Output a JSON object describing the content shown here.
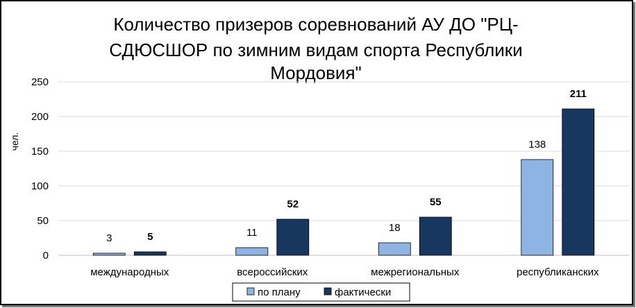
{
  "chart_data": {
    "type": "bar",
    "title_lines": [
      "Количество призеров соревнований АУ ДО \"РЦ-",
      "СДЮСШОР по зимним видам спорта Республики",
      "Мордовия\""
    ],
    "ylabel": "чел.",
    "xlabel": "",
    "ylim": [
      0,
      250
    ],
    "yticks": [
      0,
      50,
      100,
      150,
      200,
      250
    ],
    "categories": [
      "международных",
      "всероссийских",
      "межрегиональных",
      "республиканских"
    ],
    "series": [
      {
        "name": "по плану",
        "values": [
          3,
          11,
          18,
          138
        ],
        "color": "#8eb4e3"
      },
      {
        "name": "фактически",
        "values": [
          5,
          52,
          55,
          211
        ],
        "color": "#17375e"
      }
    ],
    "grid": true,
    "legend_position": "bottom"
  }
}
